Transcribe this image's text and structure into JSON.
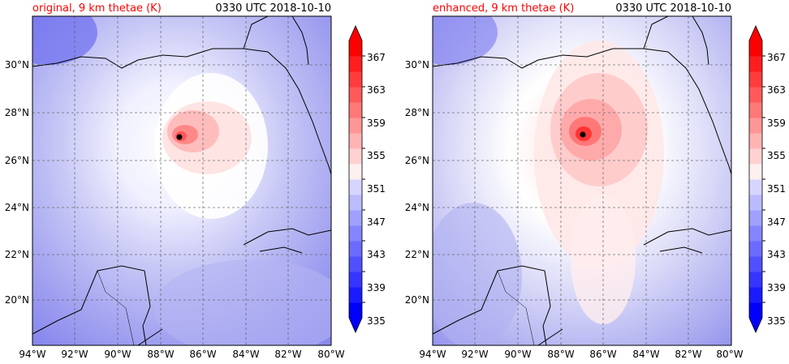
{
  "chart_data": [
    {
      "type": "heatmap",
      "title": "original, 9 km thetae (K)",
      "time_label": "0330 UTC 2018-10-10",
      "colorbar_ticks": [
        "335",
        "339",
        "343",
        "347",
        "351",
        "355",
        "359",
        "363",
        "367"
      ],
      "colorbar_range": [
        333,
        369
      ],
      "x_ticks": [
        "94°W",
        "92°W",
        "90°W",
        "88°W",
        "86°W",
        "84°W",
        "82°W",
        "80°W"
      ],
      "y_ticks": [
        "20°N",
        "22°N",
        "24°N",
        "26°N",
        "28°N",
        "30°N"
      ],
      "lon_range": [
        -94,
        -80
      ],
      "lat_range": [
        18.2,
        32
      ],
      "storm_center": {
        "lon": -87.1,
        "lat": 27.0
      },
      "colors": {
        "low": "#0000ff",
        "mid": "#ffffff",
        "high": "#ff0000"
      }
    },
    {
      "type": "heatmap",
      "title": "enhanced, 9 km thetae (K)",
      "time_label": "0330 UTC 2018-10-10",
      "colorbar_ticks": [
        "335",
        "339",
        "343",
        "347",
        "351",
        "355",
        "359",
        "363",
        "367"
      ],
      "colorbar_range": [
        333,
        369
      ],
      "x_ticks": [
        "94°W",
        "92°W",
        "90°W",
        "88°W",
        "86°W",
        "84°W",
        "82°W",
        "80°W"
      ],
      "y_ticks": [
        "20°N",
        "22°N",
        "24°N",
        "26°N",
        "28°N",
        "30°N"
      ],
      "lon_range": [
        -94,
        -80
      ],
      "lat_range": [
        18.2,
        32
      ],
      "storm_center": {
        "lon": -87.0,
        "lat": 27.1
      },
      "colors": {
        "low": "#0000ff",
        "mid": "#ffffff",
        "high": "#ff0000"
      }
    }
  ]
}
